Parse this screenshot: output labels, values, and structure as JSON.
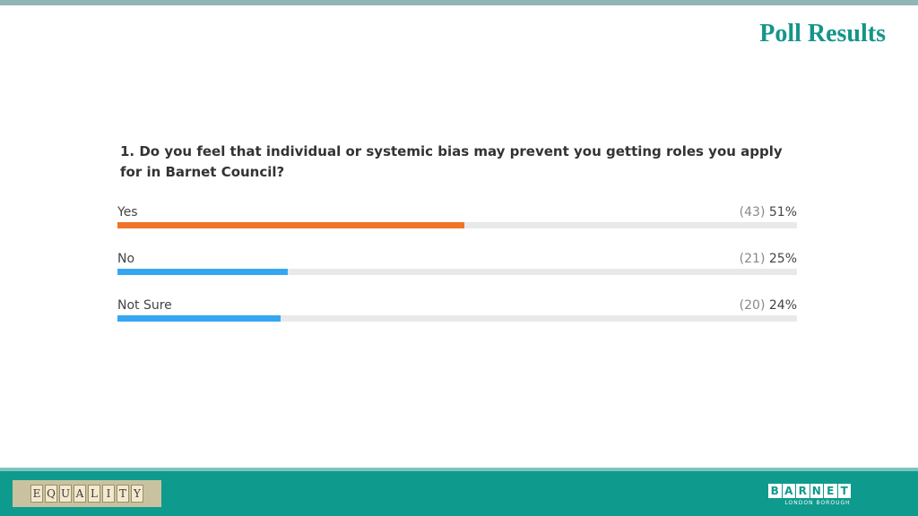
{
  "slide": {
    "title": "Poll Results"
  },
  "poll": {
    "question": "1. Do you feel that individual or systemic bias may prevent you getting roles you apply for in Barnet Council?",
    "options": [
      {
        "label": "Yes",
        "count": "(43)",
        "percent": "51%",
        "fraction": 0.51,
        "color": "#f07427"
      },
      {
        "label": "No",
        "count": "(21)",
        "percent": "25%",
        "fraction": 0.25,
        "color": "#35a7f1"
      },
      {
        "label": "Not Sure",
        "count": "(20)",
        "percent": "24%",
        "fraction": 0.24,
        "color": "#35a7f1"
      }
    ]
  },
  "footer": {
    "equality_letters": [
      "E",
      "Q",
      "U",
      "A",
      "L",
      "I",
      "T",
      "Y"
    ],
    "logo_letters": [
      "B",
      "A",
      "R",
      "N",
      "E",
      "T"
    ],
    "logo_subtitle": "LONDON BOROUGH"
  }
}
